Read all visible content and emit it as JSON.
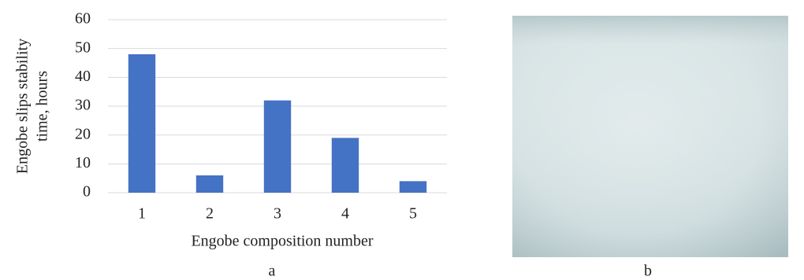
{
  "chart_data": {
    "type": "bar",
    "ylabel": [
      "Engobe slips stability",
      "time, hours"
    ],
    "xlabel": "Engobe composition number",
    "categories": [
      "1",
      "2",
      "3",
      "4",
      "5"
    ],
    "values": [
      48,
      6,
      32,
      19,
      4
    ],
    "color": "#4472c4",
    "ylim": [
      0,
      60
    ],
    "yticks": [
      0,
      10,
      20,
      30,
      40,
      50,
      60
    ],
    "grid": true
  },
  "panel_labels": [
    "a",
    "b"
  ]
}
